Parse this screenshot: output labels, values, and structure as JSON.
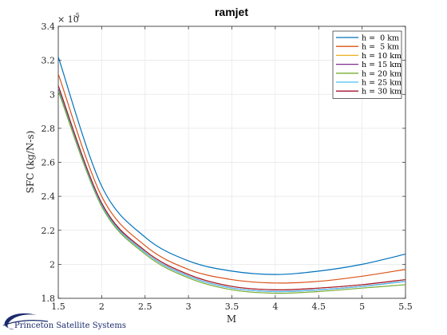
{
  "chart_data": {
    "type": "line",
    "title": "ramjet",
    "xlabel": "M",
    "ylabel": "SFC (kg/N-s)",
    "y_exponent_label": "× 10",
    "y_exponent": "-5",
    "xlim": [
      1.5,
      5.5
    ],
    "ylim": [
      1.8,
      3.4
    ],
    "xticks": [
      1.5,
      2,
      2.5,
      3,
      3.5,
      4,
      4.5,
      5,
      5.5
    ],
    "xtick_labels": [
      "1.5",
      "2",
      "2.5",
      "3",
      "3.5",
      "4",
      "4.5",
      "5",
      "5.5"
    ],
    "yticks": [
      1.8,
      2,
      2.2,
      2.4,
      2.6,
      2.8,
      3,
      3.2,
      3.4
    ],
    "ytick_labels": [
      "1.8",
      "2",
      "2.2",
      "2.4",
      "2.6",
      "2.8",
      "3",
      "3.2",
      "3.4"
    ],
    "grid": true,
    "legend_position": "top-right",
    "x": [
      1.5,
      2.0,
      2.5,
      3.0,
      3.5,
      4.0,
      4.5,
      5.0,
      5.5
    ],
    "series": [
      {
        "name": "h =  0 km",
        "color": "#0072BD",
        "values": [
          3.22,
          2.46,
          2.16,
          2.02,
          1.96,
          1.94,
          1.96,
          2.0,
          2.06
        ]
      },
      {
        "name": "h =  5 km",
        "color": "#D95319",
        "values": [
          3.12,
          2.4,
          2.11,
          1.97,
          1.91,
          1.89,
          1.9,
          1.93,
          1.97
        ]
      },
      {
        "name": "h = 10 km",
        "color": "#EDB120",
        "values": [
          3.05,
          2.36,
          2.08,
          1.94,
          1.87,
          1.85,
          1.86,
          1.88,
          1.91
        ]
      },
      {
        "name": "h = 15 km",
        "color": "#7E2F8E",
        "values": [
          3.03,
          2.35,
          2.07,
          1.93,
          1.86,
          1.84,
          1.85,
          1.87,
          1.9
        ]
      },
      {
        "name": "h = 20 km",
        "color": "#77AC30",
        "values": [
          3.02,
          2.34,
          2.06,
          1.92,
          1.85,
          1.83,
          1.84,
          1.86,
          1.88
        ]
      },
      {
        "name": "h = 25 km",
        "color": "#4DBEEE",
        "values": [
          3.04,
          2.35,
          2.07,
          1.93,
          1.86,
          1.84,
          1.85,
          1.87,
          1.9
        ]
      },
      {
        "name": "h = 30 km",
        "color": "#A2142F",
        "values": [
          3.05,
          2.36,
          2.08,
          1.94,
          1.87,
          1.85,
          1.86,
          1.88,
          1.91
        ]
      }
    ]
  },
  "logo": {
    "text": "Princeton Satellite Systems",
    "color": "#1a2a6c"
  }
}
